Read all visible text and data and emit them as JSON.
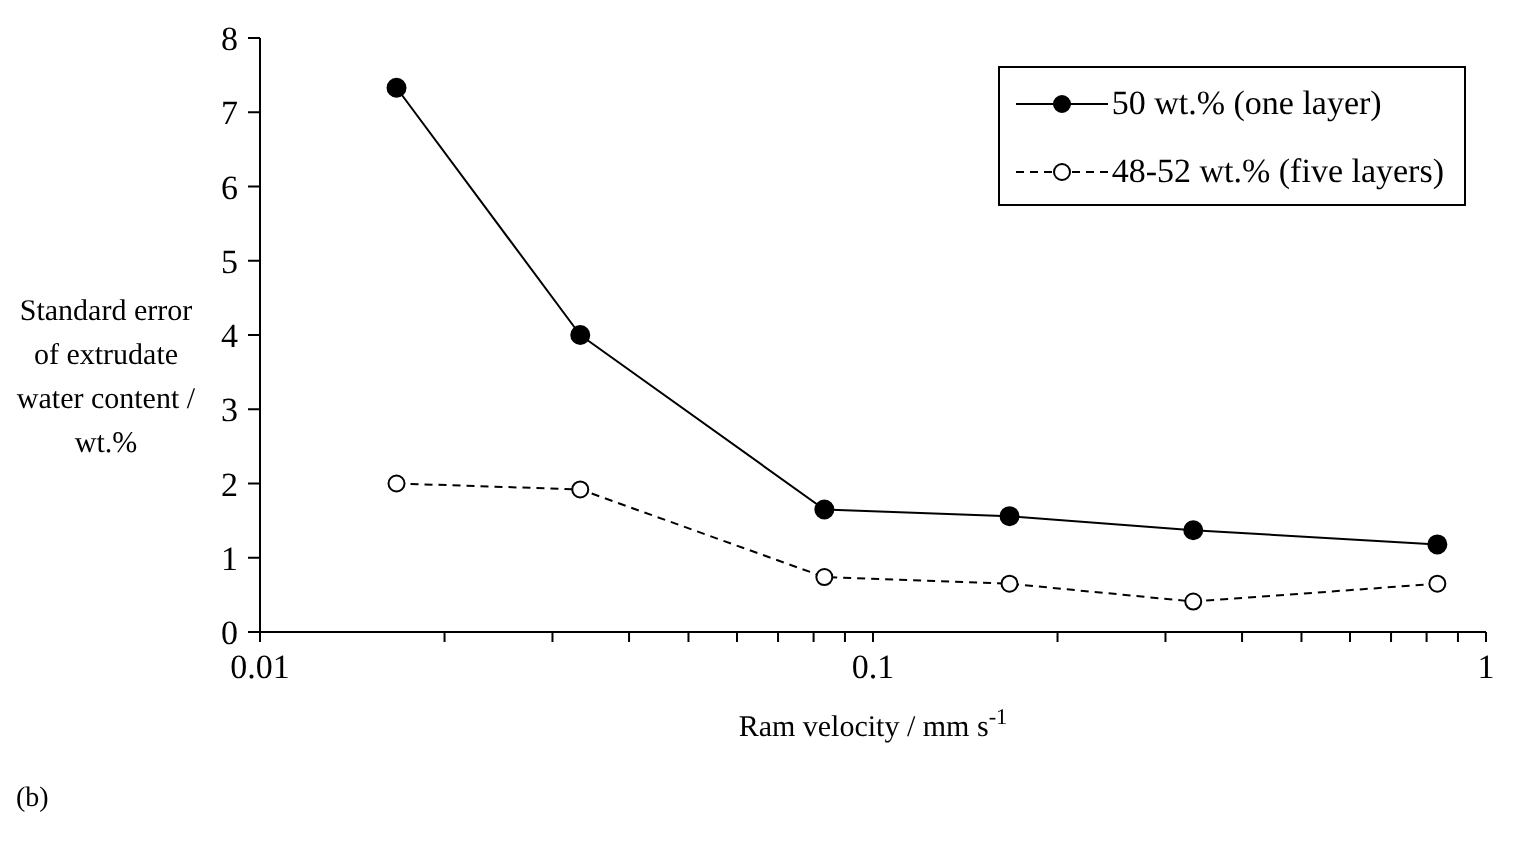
{
  "chart_data": {
    "type": "line",
    "ylabel": "Standard error of extrudate water content / wt.%",
    "xlabel": "Ram velocity / mm s$^{-1}$",
    "annotations": [
      "(b)"
    ],
    "log": "x",
    "x": [
      0.0167,
      0.0333,
      0.0833,
      0.167,
      0.333,
      0.833
    ],
    "xlim": [
      0.01,
      1
    ],
    "xticks": [
      0.01,
      {
        "value": 0.02,
        "label": null
      },
      {
        "value": 0.03,
        "label": null
      },
      {
        "value": 0.04,
        "label": null
      },
      {
        "value": 0.05,
        "label": null
      },
      {
        "value": 0.06,
        "label": null
      },
      {
        "value": 0.07,
        "label": null
      },
      {
        "value": 0.08,
        "label": null
      },
      {
        "value": 0.09,
        "label": null
      },
      0.1,
      {
        "value": 0.2,
        "label": null
      },
      {
        "value": 0.3,
        "label": null
      },
      {
        "value": 0.4,
        "label": null
      },
      {
        "value": 0.5,
        "label": null
      },
      {
        "value": 0.6,
        "label": null
      },
      {
        "value": 0.7,
        "label": null
      },
      {
        "value": 0.8,
        "label": null
      },
      {
        "value": 0.9,
        "label": null
      },
      1
    ],
    "ylim": [
      0,
      8
    ],
    "yticks": [
      0,
      1,
      2,
      3,
      4,
      5,
      6,
      7,
      8
    ],
    "grid": false,
    "legend": "top right",
    "marker": "circle",
    "series": [
      {
        "name": "50 wt.% (one layer)",
        "color": "#000000",
        "line_style": "solid",
        "values": [
          7.33,
          4.0,
          1.65,
          1.56,
          1.37,
          1.18
        ]
      },
      {
        "name": "48-52 wt.% (five layers)",
        "color": "#000000",
        "line_style": "dashed",
        "values": [
          2.0,
          1.92,
          0.74,
          0.65,
          0.41,
          0.65
        ]
      }
    ]
  }
}
